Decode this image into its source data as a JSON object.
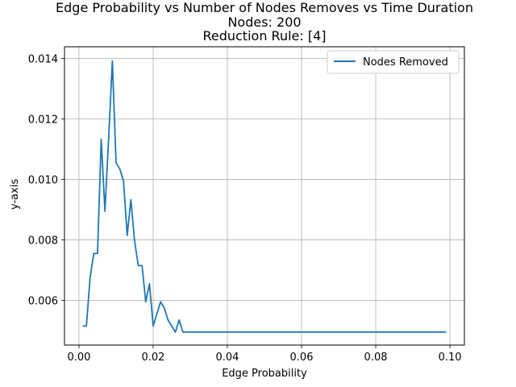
{
  "chart_data": {
    "type": "line",
    "title_lines": [
      "Edge Probability vs Number of Nodes Removes vs Time Duration",
      "Nodes: 200",
      "Reduction Rule: [4]"
    ],
    "xlabel": "Edge Probability",
    "ylabel": "y-axis",
    "xlim": [
      -0.0039,
      0.1039
    ],
    "ylim": [
      0.00452,
      0.01439
    ],
    "xticks": [
      0.0,
      0.02,
      0.04,
      0.06,
      0.08,
      0.1
    ],
    "xtick_labels": [
      "0.00",
      "0.02",
      "0.04",
      "0.06",
      "0.08",
      "0.10"
    ],
    "yticks": [
      0.006,
      0.008,
      0.01,
      0.012,
      0.014
    ],
    "ytick_labels": [
      "0.006",
      "0.008",
      "0.010",
      "0.012",
      "0.014"
    ],
    "grid": true,
    "legend_position": "top-right",
    "series": [
      {
        "name": "Nodes Removed",
        "color": "#1f77b4",
        "x": [
          0.001,
          0.002,
          0.003,
          0.004,
          0.005,
          0.006,
          0.007,
          0.008,
          0.009,
          0.01,
          0.011,
          0.012,
          0.013,
          0.014,
          0.015,
          0.016,
          0.017,
          0.018,
          0.019,
          0.02,
          0.021,
          0.022,
          0.023,
          0.024,
          0.025,
          0.026,
          0.027,
          0.028,
          0.029,
          0.03,
          0.035,
          0.04,
          0.045,
          0.05,
          0.055,
          0.06,
          0.065,
          0.07,
          0.075,
          0.08,
          0.085,
          0.09,
          0.095,
          0.099
        ],
        "y": [
          0.00515,
          0.00515,
          0.00675,
          0.00755,
          0.00755,
          0.01133,
          0.00895,
          0.01135,
          0.01392,
          0.01055,
          0.01035,
          0.00995,
          0.00815,
          0.00933,
          0.00795,
          0.00715,
          0.00715,
          0.00595,
          0.00655,
          0.00515,
          0.00555,
          0.00595,
          0.00575,
          0.00535,
          0.00515,
          0.00495,
          0.00535,
          0.00495,
          0.00495,
          0.00495,
          0.00495,
          0.00495,
          0.00495,
          0.00495,
          0.00495,
          0.00495,
          0.00495,
          0.00495,
          0.00495,
          0.00495,
          0.00495,
          0.00495,
          0.00495,
          0.00495
        ]
      }
    ]
  }
}
